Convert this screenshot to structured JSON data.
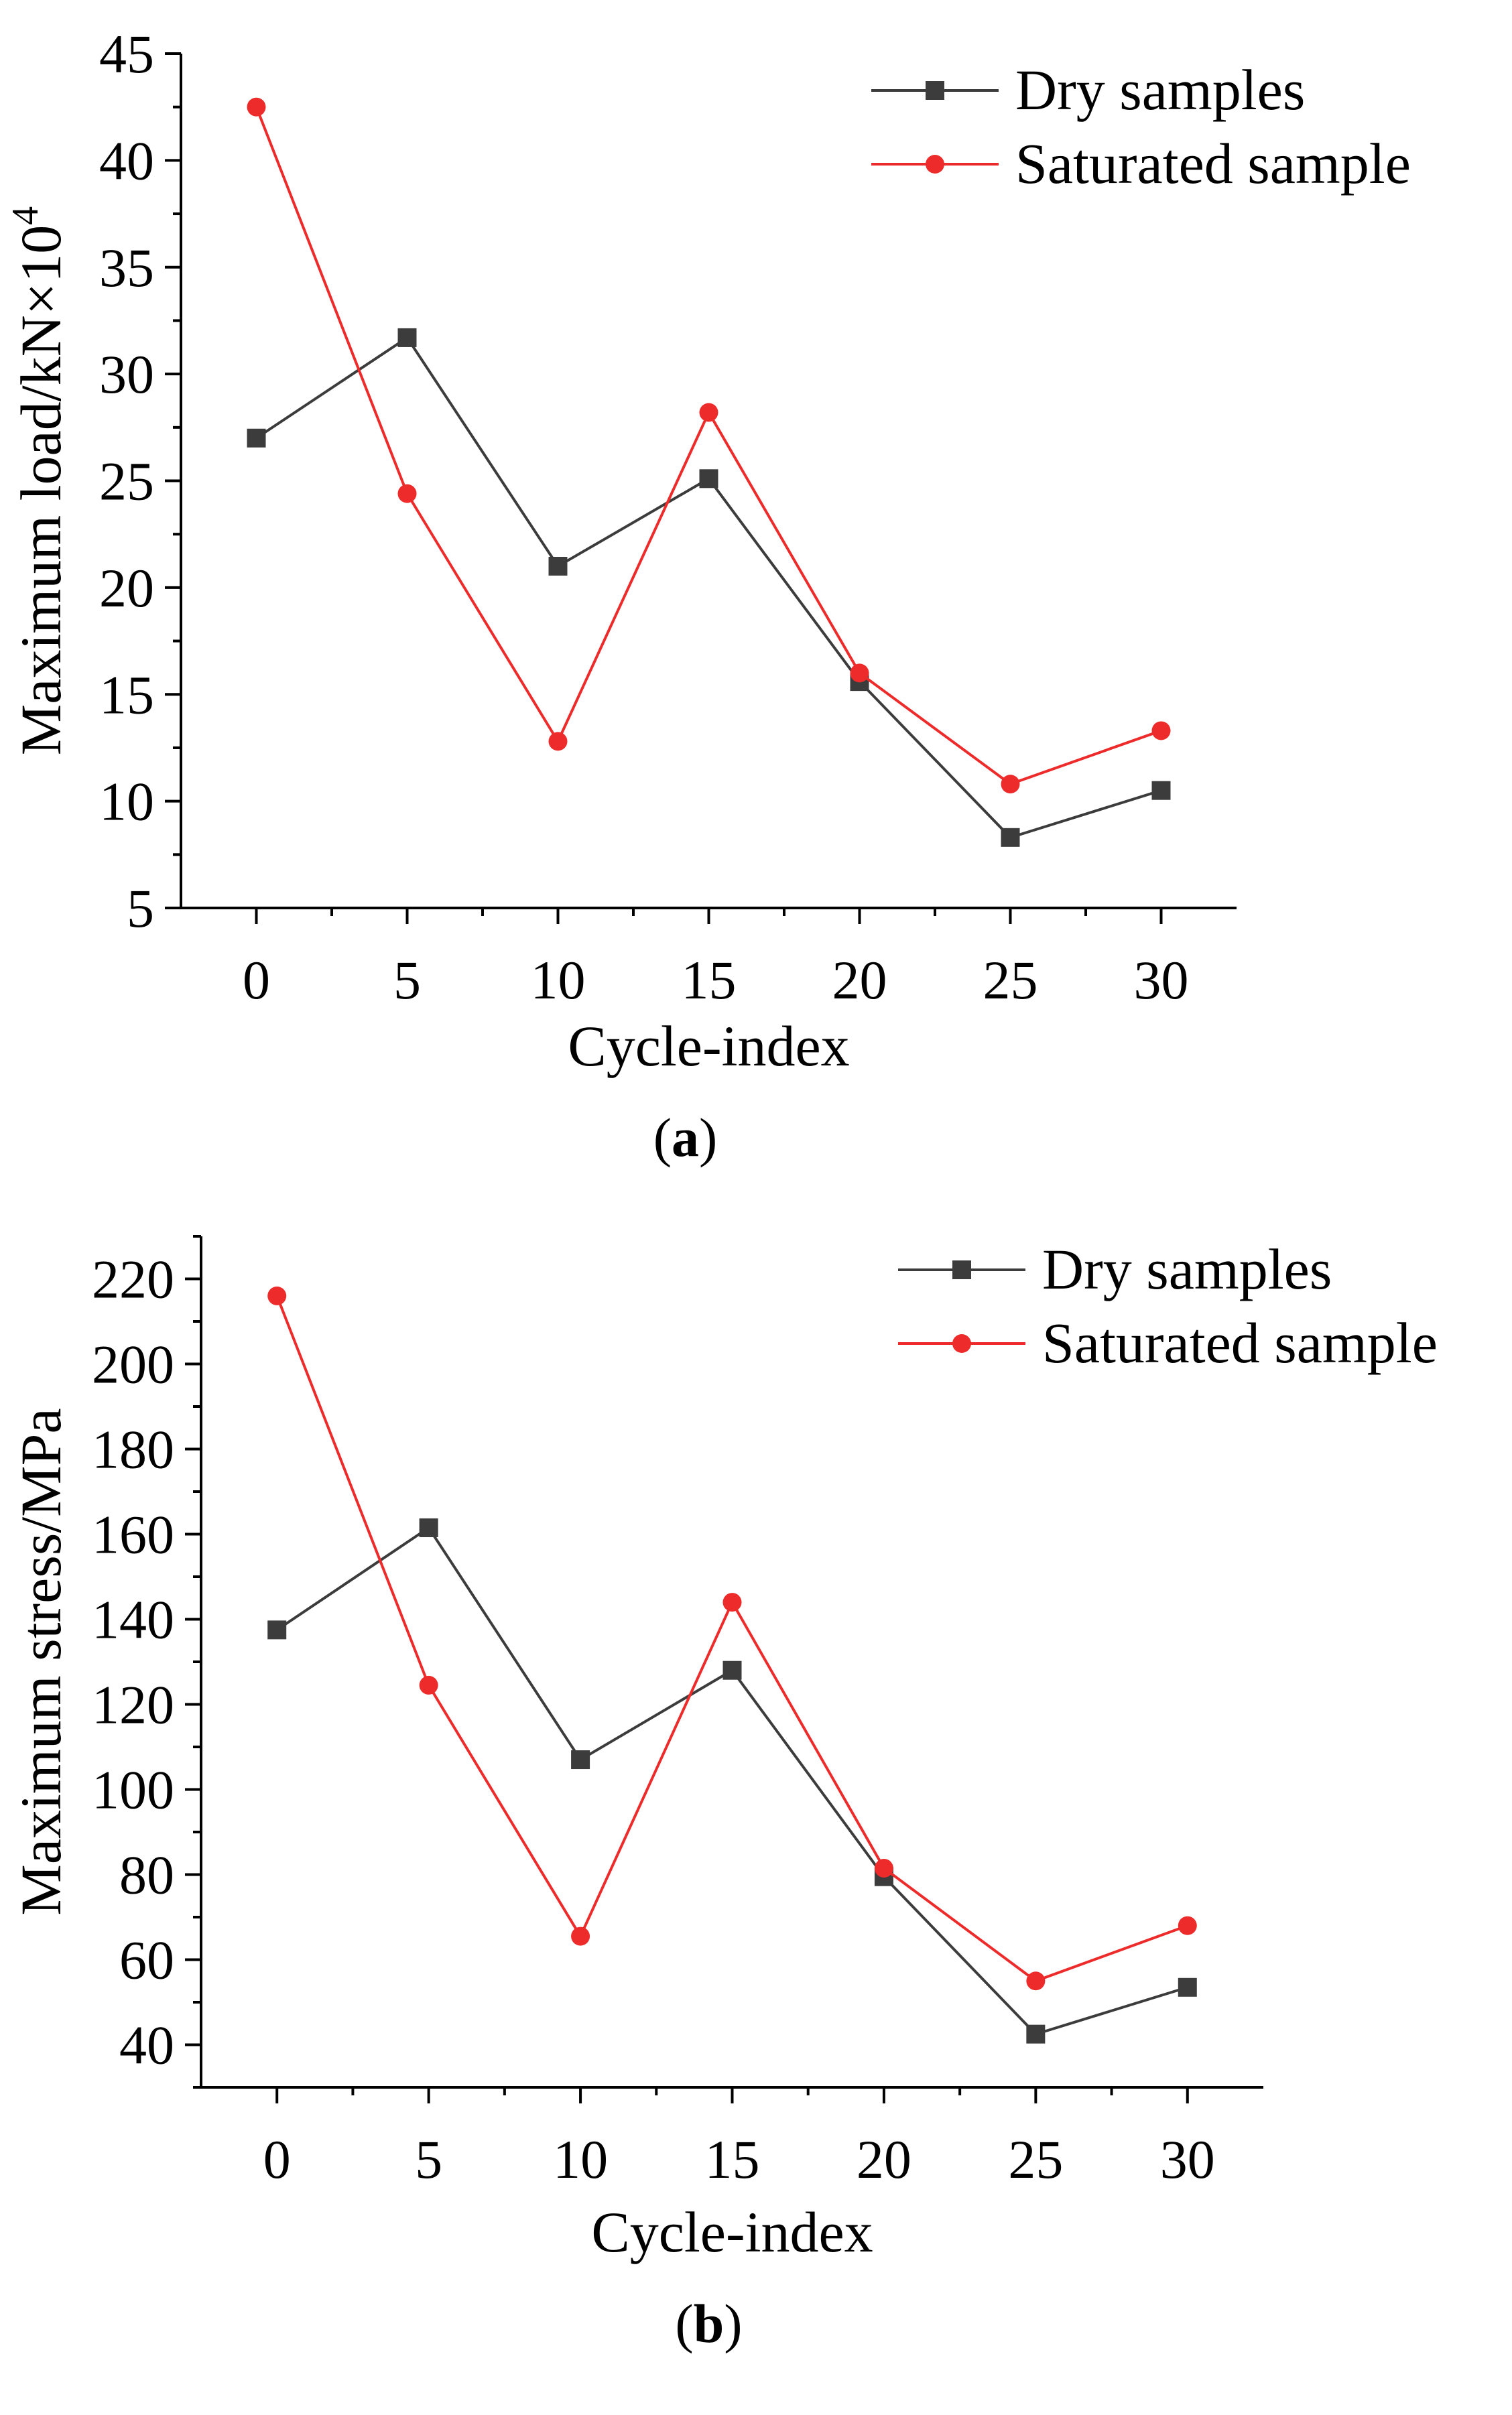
{
  "chart_data": [
    {
      "id": "a",
      "type": "line",
      "caption_letter": "a",
      "xlabel": "Cycle-index",
      "ylabel": "Maximum load/kN×10",
      "ylabel_superscript": "4",
      "ylim": [
        5,
        45
      ],
      "yticks": [
        5,
        10,
        15,
        20,
        25,
        30,
        35,
        40,
        45
      ],
      "x": [
        0,
        5,
        10,
        15,
        20,
        25,
        30
      ],
      "legend_position": "top-right",
      "series": [
        {
          "name": "Dry samples",
          "marker": "square",
          "color": "#3c3c3c",
          "values": [
            27.0,
            31.7,
            21.0,
            25.1,
            15.6,
            8.3,
            10.5
          ]
        },
        {
          "name": "Saturated sample",
          "marker": "circle",
          "color": "#ee2b2b",
          "values": [
            42.5,
            24.4,
            12.8,
            28.2,
            16.0,
            10.8,
            13.3
          ]
        }
      ]
    },
    {
      "id": "b",
      "type": "line",
      "caption_letter": "b",
      "xlabel": "Cycle-index",
      "ylabel": "Maximum stress/MPa",
      "ylabel_superscript": "",
      "ylim": [
        30,
        230
      ],
      "yticks": [
        40,
        60,
        80,
        100,
        120,
        140,
        160,
        180,
        200,
        220
      ],
      "x": [
        0,
        5,
        10,
        15,
        20,
        25,
        30
      ],
      "legend_position": "top-right",
      "series": [
        {
          "name": "Dry samples",
          "marker": "square",
          "color": "#3c3c3c",
          "values": [
            137.5,
            161.5,
            107.0,
            128.0,
            79.5,
            42.5,
            53.5
          ]
        },
        {
          "name": "Saturated sample",
          "marker": "circle",
          "color": "#ee2b2b",
          "values": [
            216.0,
            124.5,
            65.5,
            144.0,
            81.5,
            55.0,
            68.0
          ]
        }
      ]
    }
  ]
}
